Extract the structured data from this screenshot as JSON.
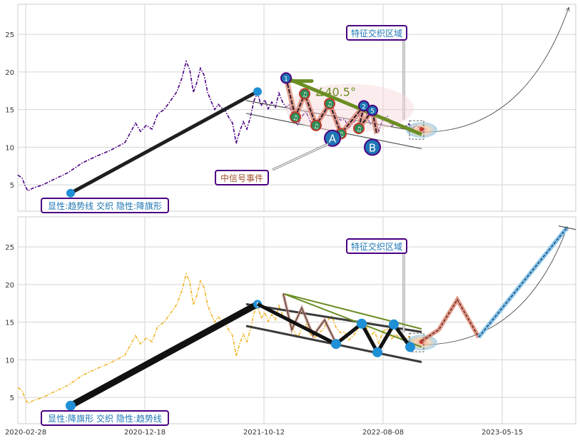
{
  "chart_data": [
    {
      "type": "line",
      "panel": "top",
      "ylim": [
        1.5,
        29
      ],
      "yticks": [
        5,
        10,
        15,
        20,
        25
      ],
      "price_series": {
        "color": "#4b0082",
        "style": "dash-dot",
        "points": [
          [
            0,
            6.3
          ],
          [
            6,
            5.9
          ],
          [
            10,
            4.9
          ],
          [
            14,
            4.2
          ],
          [
            22,
            4.6
          ],
          [
            35,
            5.0
          ],
          [
            50,
            5.7
          ],
          [
            70,
            6.6
          ],
          [
            90,
            7.9
          ],
          [
            110,
            8.8
          ],
          [
            130,
            9.6
          ],
          [
            150,
            10.6
          ],
          [
            165,
            13.2
          ],
          [
            172,
            12.1
          ],
          [
            180,
            12.9
          ],
          [
            188,
            12.4
          ],
          [
            196,
            14.4
          ],
          [
            205,
            15.0
          ],
          [
            215,
            16.3
          ],
          [
            223,
            17.4
          ],
          [
            230,
            19.2
          ],
          [
            236,
            21.4
          ],
          [
            241,
            20.3
          ],
          [
            246,
            17.3
          ],
          [
            251,
            18.6
          ],
          [
            256,
            20.5
          ],
          [
            261,
            19.6
          ],
          [
            266,
            17.3
          ],
          [
            271,
            16.1
          ],
          [
            276,
            15.0
          ],
          [
            281,
            15.7
          ],
          [
            286,
            15.2
          ],
          [
            291,
            14.8
          ],
          [
            296,
            13.9
          ],
          [
            301,
            13.2
          ],
          [
            306,
            10.5
          ],
          [
            311,
            12.1
          ],
          [
            316,
            13.4
          ],
          [
            321,
            12.4
          ],
          [
            326,
            14.0
          ],
          [
            331,
            16.2
          ],
          [
            336,
            17.2
          ],
          [
            341,
            15.5
          ],
          [
            346,
            16.3
          ],
          [
            351,
            15.1
          ],
          [
            356,
            16.0
          ],
          [
            361,
            15.3
          ],
          [
            366,
            17.2
          ],
          [
            371,
            16.0
          ],
          [
            376,
            15.3
          ],
          [
            380,
            15.6
          ],
          [
            386,
            14.1
          ],
          [
            392,
            12.9
          ],
          [
            398,
            14.1
          ],
          [
            404,
            14.7
          ],
          [
            410,
            13.4
          ],
          [
            416,
            12.9
          ],
          [
            422,
            13.6
          ],
          [
            428,
            14.0
          ],
          [
            434,
            15.2
          ],
          [
            440,
            15.8
          ],
          [
            446,
            14.3
          ],
          [
            452,
            13.6
          ],
          [
            458,
            13.7
          ],
          [
            464,
            12.6
          ],
          [
            470,
            13.2
          ],
          [
            476,
            13.9
          ],
          [
            482,
            15.1
          ],
          [
            488,
            14.6
          ],
          [
            494,
            13.0
          ],
          [
            500,
            13.8
          ],
          [
            506,
            12.2
          ],
          [
            512,
            13.8
          ],
          [
            518,
            14.1
          ],
          [
            524,
            12.8
          ],
          [
            530,
            13.4
          ],
          [
            536,
            12.8
          ],
          [
            542,
            12.6
          ],
          [
            548,
            13.1
          ],
          [
            553,
            12.4
          ],
          [
            558,
            12.9
          ],
          [
            563,
            12.6
          ],
          [
            567,
            12.9
          ]
        ]
      },
      "trendline": {
        "from": [
          74,
          3.9
        ],
        "to": [
          336,
          17.4
        ]
      },
      "channel": {
        "upper": [
          [
            320,
            16.2
          ],
          [
            566,
            12.0
          ]
        ],
        "lower": [
          [
            320,
            14.5
          ],
          [
            566,
            9.8
          ]
        ]
      },
      "wave_points": [
        [
          376,
          19.2
        ],
        [
          389,
          14.0
        ],
        [
          402,
          17.1
        ],
        [
          418,
          12.9
        ],
        [
          437,
          15.8
        ],
        [
          453,
          11.8
        ],
        [
          485,
          15.5
        ],
        [
          478,
          12.5
        ],
        [
          497,
          14.9
        ],
        [
          503,
          11.8
        ]
      ],
      "wave_numbers": [
        "1",
        "♫",
        "♫",
        "♫",
        "♫",
        "♫",
        "2",
        "♫",
        "5"
      ],
      "green_line": {
        "from": [
          376,
          19.2
        ],
        "to": [
          566,
          11.7
        ]
      },
      "flag": {
        "from": [
          376,
          18.8
        ],
        "to": [
          412,
          18.8
        ]
      },
      "angle_label": "∠40.5°",
      "A_label": "A",
      "A_point": [
        441,
        11.2
      ],
      "B_label": "B",
      "B_point": [
        497,
        10.0
      ],
      "feature_label": "特征交织区域",
      "signal_label": "中信号事件",
      "pattern_label": "显性:趋势线 交织 隐性:降旗形",
      "projection_arc": {
        "from": [
          566,
          12.0
        ],
        "to": [
          772,
          28.5
        ]
      }
    },
    {
      "type": "line",
      "panel": "bottom",
      "ylim": [
        1.5,
        29
      ],
      "yticks": [
        5,
        10,
        15,
        20,
        25
      ],
      "price_series": {
        "color": "#f0b429",
        "style": "dash-dot",
        "points": [
          [
            0,
            6.3
          ],
          [
            6,
            5.9
          ],
          [
            10,
            4.9
          ],
          [
            14,
            4.2
          ],
          [
            22,
            4.6
          ],
          [
            35,
            5.0
          ],
          [
            50,
            5.7
          ],
          [
            70,
            6.6
          ],
          [
            90,
            7.9
          ],
          [
            110,
            8.8
          ],
          [
            130,
            9.6
          ],
          [
            150,
            10.6
          ],
          [
            165,
            13.2
          ],
          [
            172,
            12.1
          ],
          [
            180,
            12.9
          ],
          [
            188,
            12.4
          ],
          [
            196,
            14.4
          ],
          [
            205,
            15.0
          ],
          [
            215,
            16.3
          ],
          [
            223,
            17.4
          ],
          [
            230,
            19.2
          ],
          [
            236,
            21.4
          ],
          [
            241,
            20.3
          ],
          [
            246,
            17.3
          ],
          [
            251,
            18.6
          ],
          [
            256,
            20.5
          ],
          [
            261,
            19.6
          ],
          [
            266,
            17.3
          ],
          [
            271,
            16.1
          ],
          [
            276,
            15.0
          ],
          [
            281,
            15.7
          ],
          [
            286,
            15.2
          ],
          [
            291,
            14.8
          ],
          [
            296,
            13.9
          ],
          [
            301,
            13.2
          ],
          [
            306,
            10.5
          ],
          [
            311,
            12.1
          ],
          [
            316,
            13.4
          ],
          [
            321,
            12.4
          ],
          [
            326,
            14.0
          ],
          [
            331,
            16.2
          ],
          [
            336,
            17.2
          ],
          [
            341,
            15.5
          ],
          [
            346,
            16.3
          ],
          [
            351,
            15.1
          ],
          [
            356,
            16.0
          ],
          [
            361,
            15.3
          ],
          [
            366,
            17.2
          ],
          [
            371,
            16.0
          ],
          [
            376,
            15.3
          ],
          [
            380,
            15.6
          ],
          [
            386,
            14.1
          ],
          [
            392,
            12.9
          ],
          [
            398,
            14.1
          ],
          [
            404,
            14.7
          ],
          [
            410,
            13.4
          ],
          [
            416,
            12.9
          ],
          [
            422,
            13.6
          ],
          [
            428,
            14.0
          ],
          [
            434,
            15.2
          ],
          [
            440,
            15.8
          ],
          [
            446,
            14.3
          ],
          [
            452,
            13.6
          ],
          [
            458,
            13.7
          ],
          [
            464,
            12.6
          ],
          [
            470,
            13.2
          ],
          [
            476,
            13.9
          ],
          [
            482,
            15.1
          ],
          [
            488,
            14.6
          ],
          [
            494,
            13.0
          ],
          [
            500,
            13.8
          ],
          [
            506,
            12.2
          ],
          [
            512,
            13.8
          ],
          [
            518,
            14.1
          ],
          [
            524,
            12.8
          ],
          [
            530,
            13.4
          ],
          [
            536,
            12.8
          ],
          [
            542,
            12.6
          ],
          [
            548,
            13.1
          ],
          [
            553,
            12.4
          ],
          [
            558,
            12.9
          ],
          [
            563,
            12.6
          ],
          [
            567,
            12.9
          ]
        ]
      },
      "trendline": {
        "from": [
          74,
          3.9
        ],
        "to": [
          336,
          17.4
        ]
      },
      "channel": {
        "upper": [
          [
            320,
            17.4
          ],
          [
            566,
            13.7
          ]
        ],
        "lower": [
          [
            320,
            14.5
          ],
          [
            566,
            9.7
          ]
        ]
      },
      "zigzag": [
        [
          336,
          17.4
        ],
        [
          446,
          12.1
        ],
        [
          482,
          14.8
        ],
        [
          504,
          11.0
        ],
        [
          527,
          14.7
        ],
        [
          550,
          11.7
        ]
      ],
      "small_zigzag": [
        [
          372,
          18.8
        ],
        [
          384,
          14.0
        ],
        [
          398,
          16.9
        ],
        [
          414,
          13.2
        ],
        [
          430,
          15.3
        ],
        [
          446,
          12.2
        ]
      ],
      "green_triangle": [
        [
          372,
          18.8
        ],
        [
          566,
          14.1
        ],
        [
          566,
          11.7
        ]
      ],
      "projection_path": [
        [
          566,
          12.5
        ],
        [
          590,
          14.0
        ],
        [
          616,
          18.0
        ],
        [
          646,
          13.0
        ]
      ],
      "projection_line": {
        "from": [
          646,
          13.0
        ],
        "to": [
          770,
          27.6
        ]
      },
      "feature_label": "特征交织区域",
      "pattern_label": "显性:降旗形 交织 隐性:趋势线",
      "projection_arc": {
        "from": [
          566,
          12.0
        ],
        "to": [
          770,
          27.6
        ]
      }
    }
  ],
  "x_axis": {
    "tick_labels": [
      "2020-02-28",
      "2020-12-18",
      "2021-10-12",
      "2022-08-08",
      "2023-05-15"
    ]
  }
}
